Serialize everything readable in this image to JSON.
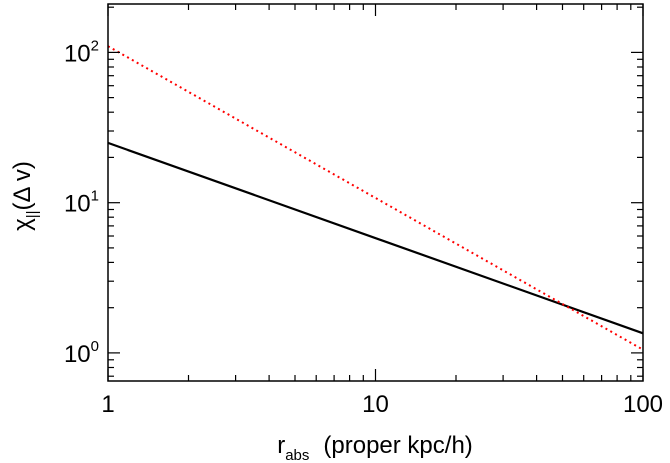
{
  "chart_data": {
    "type": "line",
    "x_scale": "log",
    "y_scale": "log",
    "xlim": [
      1,
      100
    ],
    "ylim": [
      0.65,
      210
    ],
    "x_ticks": [
      {
        "value": 1,
        "label": "1"
      },
      {
        "value": 10,
        "label": "10"
      },
      {
        "value": 100,
        "label": "100"
      }
    ],
    "y_ticks": [
      {
        "value": 1,
        "base": "10",
        "exp": "0"
      },
      {
        "value": 10,
        "base": "10",
        "exp": "1"
      },
      {
        "value": 100,
        "base": "10",
        "exp": "2"
      }
    ],
    "xlabel": {
      "main": "r",
      "sub": "abs",
      "rest": "(proper kpc/h)"
    },
    "ylabel": {
      "main": "χ",
      "sub": "||",
      "rest": "(Δ v)"
    },
    "grid": false,
    "legend": "none",
    "series": [
      {
        "style": "solid",
        "color": "#000000",
        "x": [
          1,
          100
        ],
        "y": [
          25,
          1.35
        ]
      },
      {
        "style": "dotted",
        "color": "#ff0000",
        "x": [
          1,
          100
        ],
        "y": [
          110,
          1.05
        ]
      }
    ]
  }
}
